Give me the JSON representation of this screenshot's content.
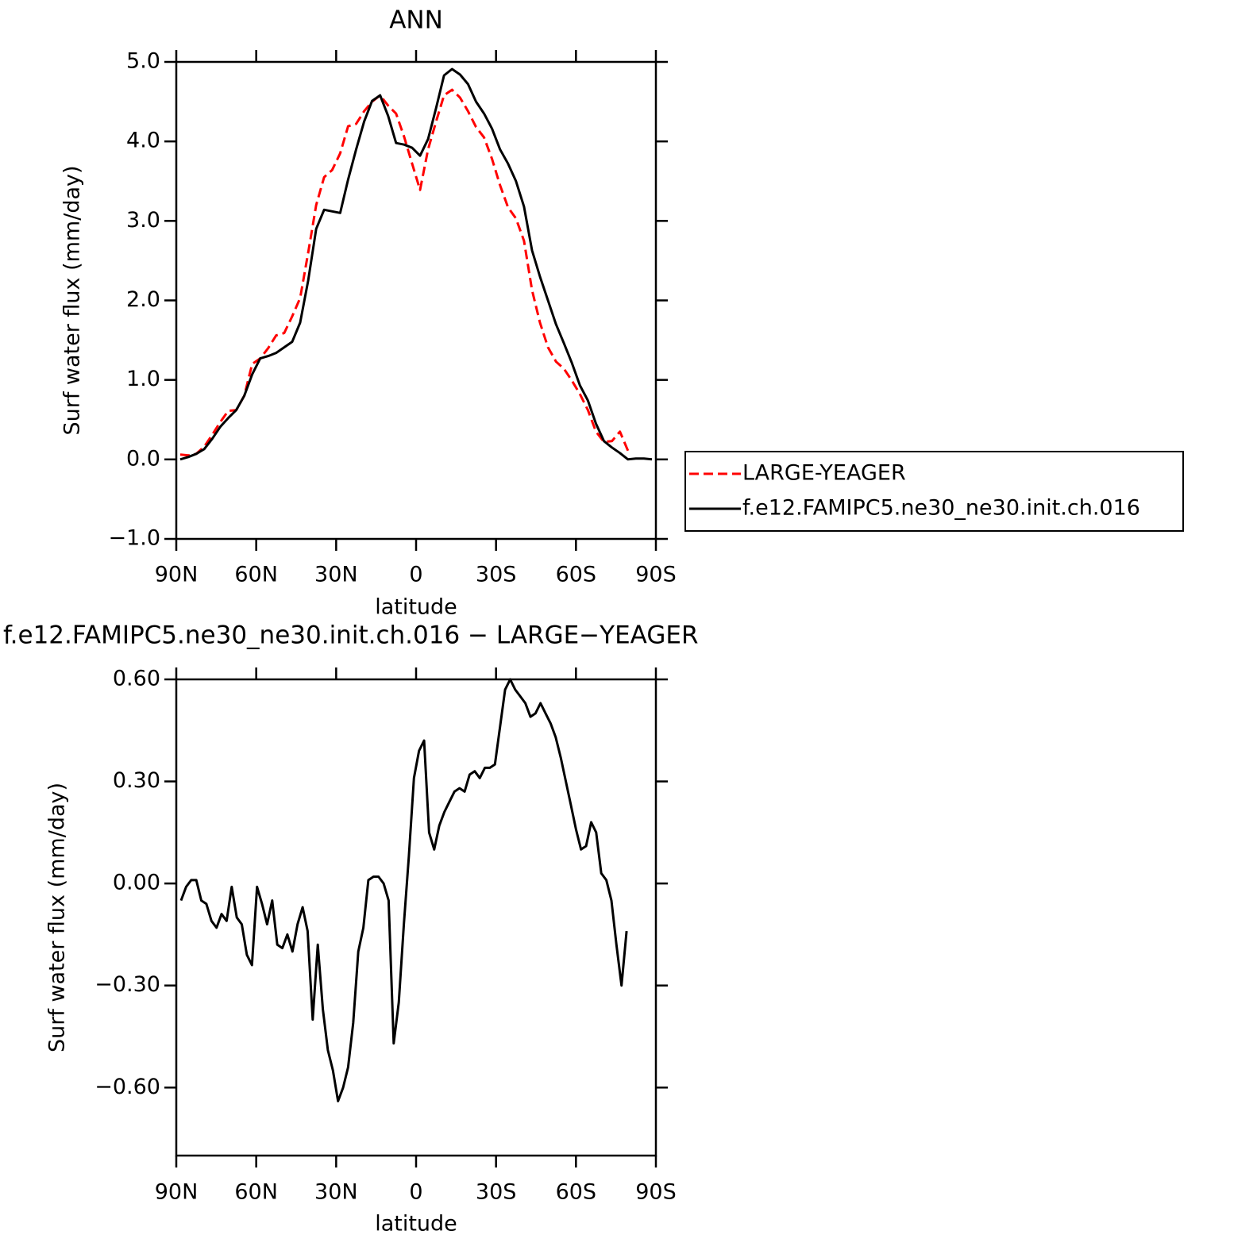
{
  "chart_data": [
    {
      "type": "line",
      "title": "ANN",
      "xlabel": "latitude",
      "ylabel": "Surf water flux (mm/day)",
      "x": [
        88.5,
        85.5,
        82.5,
        79.5,
        76.5,
        73.5,
        70.5,
        67.5,
        64.5,
        61.5,
        58.5,
        55.5,
        52.5,
        49.5,
        46.5,
        43.5,
        40.5,
        37.5,
        34.5,
        31.5,
        28.5,
        25.5,
        22.5,
        19.5,
        16.5,
        13.5,
        10.5,
        7.5,
        4.5,
        1.5,
        -1.5,
        -4.5,
        -7.5,
        -10.5,
        -13.5,
        -16.5,
        -19.5,
        -22.5,
        -25.5,
        -28.5,
        -31.5,
        -34.5,
        -37.5,
        -40.5,
        -43.5,
        -46.5,
        -49.5,
        -52.5,
        -55.5,
        -58.5,
        -61.5,
        -64.5,
        -67.5,
        -70.5,
        -73.5,
        -76.5,
        -79.5,
        -82.5,
        -85.5,
        -88.5
      ],
      "series": [
        {
          "name": "LARGE-YEAGER",
          "color": "#ff0000",
          "dashed": true,
          "values": [
            0.06,
            0.05,
            0.07,
            0.16,
            0.31,
            0.47,
            0.61,
            0.62,
            0.8,
            1.2,
            1.27,
            1.4,
            1.56,
            1.59,
            1.8,
            2.03,
            2.6,
            3.2,
            3.55,
            3.64,
            3.85,
            4.19,
            4.22,
            4.38,
            4.5,
            4.58,
            4.45,
            4.35,
            4.06,
            3.72,
            3.39,
            3.9,
            4.25,
            4.58,
            4.65,
            4.55,
            4.38,
            4.18,
            4.05,
            3.78,
            3.45,
            3.17,
            3.03,
            2.75,
            2.13,
            1.72,
            1.41,
            1.23,
            1.14,
            0.99,
            0.82,
            0.62,
            0.35,
            0.22,
            0.23,
            0.35,
            0.11,
            null,
            null,
            null
          ]
        },
        {
          "name": "f.e12.FAMIPC5.ne30_ne30.init.ch.016",
          "color": "#000000",
          "dashed": false,
          "values": [
            0.0,
            0.03,
            0.07,
            0.13,
            0.26,
            0.41,
            0.52,
            0.62,
            0.8,
            1.07,
            1.27,
            1.3,
            1.34,
            1.41,
            1.48,
            1.72,
            2.25,
            2.9,
            3.14,
            3.12,
            3.1,
            3.52,
            3.9,
            4.25,
            4.51,
            4.58,
            4.32,
            3.98,
            3.96,
            3.92,
            3.82,
            4.03,
            4.42,
            4.83,
            4.91,
            4.84,
            4.72,
            4.5,
            4.35,
            4.16,
            3.9,
            3.72,
            3.5,
            3.18,
            2.63,
            2.3,
            2.0,
            1.7,
            1.46,
            1.21,
            0.93,
            0.74,
            0.45,
            0.23,
            0.15,
            0.08,
            0.0,
            0.01,
            0.01,
            0.0
          ]
        }
      ],
      "xlim": [
        90,
        -90
      ],
      "xticks": [
        {
          "value": 90,
          "label": "90N"
        },
        {
          "value": 60,
          "label": "60N"
        },
        {
          "value": 30,
          "label": "30N"
        },
        0,
        {
          "value": -30,
          "label": "30S"
        },
        {
          "value": -60,
          "label": "60S"
        },
        {
          "value": -90,
          "label": "90S"
        }
      ],
      "ylim": [
        -1,
        5
      ],
      "yticks": [
        {
          "value": 5,
          "label": "5.0"
        },
        {
          "value": 4,
          "label": "4.0"
        },
        {
          "value": 3,
          "label": "3.0"
        },
        {
          "value": 2,
          "label": "2.0"
        },
        {
          "value": 1,
          "label": "1.0"
        },
        {
          "value": 0,
          "label": "0.0"
        },
        {
          "value": -1,
          "label": "−1.0"
        }
      ],
      "legend": "right"
    },
    {
      "type": "line",
      "title": "f.e12.FAMIPC5.ne30_ne30.init.ch.016 − LARGE−YEAGER",
      "xlabel": "latitude",
      "ylabel": "Surf water flux (mm/day)",
      "x": [
        88.2,
        86.3,
        84.4,
        82.5,
        80.6,
        78.7,
        76.8,
        74.9,
        73.0,
        71.1,
        69.2,
        67.3,
        65.4,
        63.5,
        61.6,
        59.7,
        57.8,
        55.9,
        54.0,
        52.1,
        50.2,
        48.3,
        46.4,
        44.5,
        42.6,
        40.7,
        38.8,
        36.9,
        35.0,
        33.1,
        31.2,
        29.3,
        27.4,
        25.5,
        23.6,
        21.7,
        19.8,
        17.9,
        16.0,
        14.1,
        12.2,
        10.3,
        8.4,
        6.5,
        4.6,
        2.7,
        0.8,
        -1.1,
        -3.0,
        -4.9,
        -6.8,
        -8.7,
        -10.6,
        -12.5,
        -14.4,
        -16.3,
        -18.2,
        -20.1,
        -22.0,
        -23.9,
        -25.8,
        -27.7,
        -29.6,
        -31.5,
        -33.4,
        -35.3,
        -37.2,
        -39.1,
        -41.0,
        -42.9,
        -44.8,
        -46.7,
        -48.6,
        -50.5,
        -52.4,
        -54.3,
        -56.2,
        -58.1,
        -60.0,
        -61.9,
        -63.8,
        -65.7,
        -67.6,
        -69.5,
        -71.4,
        -73.3,
        -75.2,
        -77.1,
        -79.0
      ],
      "values": [
        -0.05,
        -0.01,
        0.01,
        0.01,
        -0.05,
        -0.06,
        -0.11,
        -0.13,
        -0.09,
        -0.11,
        -0.01,
        -0.1,
        -0.12,
        -0.21,
        -0.24,
        -0.01,
        -0.06,
        -0.12,
        -0.05,
        -0.18,
        -0.19,
        -0.15,
        -0.2,
        -0.12,
        -0.07,
        -0.14,
        -0.4,
        -0.18,
        -0.37,
        -0.49,
        -0.55,
        -0.64,
        -0.6,
        -0.54,
        -0.41,
        -0.2,
        -0.13,
        0.01,
        0.02,
        0.02,
        0.0,
        -0.05,
        -0.47,
        -0.35,
        -0.12,
        0.08,
        0.31,
        0.39,
        0.42,
        0.15,
        0.1,
        0.17,
        0.21,
        0.24,
        0.27,
        0.28,
        0.27,
        0.32,
        0.33,
        0.31,
        0.34,
        0.34,
        0.35,
        0.46,
        0.57,
        0.6,
        0.57,
        0.55,
        0.53,
        0.49,
        0.5,
        0.53,
        0.5,
        0.47,
        0.43,
        0.37,
        0.3,
        0.23,
        0.16,
        0.1,
        0.11,
        0.18,
        0.15,
        0.03,
        0.01,
        -0.05,
        -0.18,
        -0.3,
        -0.14
      ],
      "color": "#000000",
      "xlim": [
        90,
        -90
      ],
      "xticks": [
        {
          "value": 90,
          "label": "90N"
        },
        {
          "value": 60,
          "label": "60N"
        },
        {
          "value": 30,
          "label": "30N"
        },
        0,
        {
          "value": -30,
          "label": "30S"
        },
        {
          "value": -60,
          "label": "60S"
        },
        {
          "value": -90,
          "label": "90S"
        }
      ],
      "ylim": [
        -0.8,
        0.6
      ],
      "yticks": [
        {
          "value": 0.6,
          "label": "0.60"
        },
        {
          "value": 0.3,
          "label": "0.30"
        },
        {
          "value": 0,
          "label": "0.00"
        },
        {
          "value": -0.3,
          "label": "−0.30"
        },
        {
          "value": -0.6,
          "label": "−0.60"
        }
      ]
    }
  ]
}
